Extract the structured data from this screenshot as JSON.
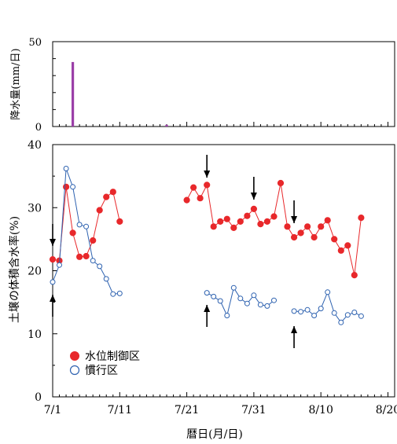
{
  "chart_data": [
    {
      "type": "bar",
      "ylabel": "降水量(mm/日)",
      "ylim": [
        0,
        50
      ],
      "yticks": [
        "0",
        "50"
      ],
      "x_range": [
        "7/1",
        "8/21"
      ],
      "color": "#9b3fa8",
      "points": [
        {
          "x": "7/4",
          "y": 38
        },
        {
          "x": "7/18",
          "y": 1
        }
      ]
    },
    {
      "type": "line",
      "xlabel": "暦日(月/日)",
      "ylabel": "土壌の体積含水率(%)",
      "ylim": [
        0,
        40
      ],
      "yticks": [
        "0",
        "10",
        "20",
        "30",
        "40"
      ],
      "xticks": [
        "7/1",
        "7/11",
        "7/21",
        "7/31",
        "8/10",
        "8/20"
      ],
      "x_range": [
        "7/1",
        "8/21"
      ],
      "legend_position": "bottom-left",
      "series": [
        {
          "name": "水位制御区",
          "marker": "filled-circle",
          "color": "#e8282b",
          "segments": [
            [
              [
                "7/1",
                21.8
              ],
              [
                "7/2",
                21.6
              ],
              [
                "7/3",
                33.3
              ],
              [
                "7/4",
                26.0
              ],
              [
                "7/5",
                22.2
              ],
              [
                "7/6",
                22.3
              ],
              [
                "7/7",
                24.8
              ],
              [
                "7/8",
                29.6
              ],
              [
                "7/9",
                31.7
              ],
              [
                "7/10",
                32.5
              ],
              [
                "7/11",
                27.8
              ]
            ],
            [
              [
                "7/21",
                31.2
              ],
              [
                "7/22",
                33.2
              ],
              [
                "7/23",
                31.5
              ],
              [
                "7/24",
                33.6
              ],
              [
                "7/25",
                27.0
              ],
              [
                "7/26",
                27.8
              ],
              [
                "7/27",
                28.2
              ],
              [
                "7/28",
                26.8
              ],
              [
                "7/29",
                27.8
              ],
              [
                "7/30",
                28.7
              ],
              [
                "7/31",
                29.8
              ],
              [
                "8/1",
                27.4
              ],
              [
                "8/2",
                27.8
              ],
              [
                "8/3",
                28.6
              ],
              [
                "8/4",
                33.9
              ],
              [
                "8/5",
                27.0
              ],
              [
                "8/6",
                25.3
              ],
              [
                "8/7",
                26.0
              ],
              [
                "8/8",
                27.0
              ],
              [
                "8/9",
                25.3
              ],
              [
                "8/10",
                27.0
              ],
              [
                "8/11",
                28.0
              ],
              [
                "8/12",
                25.0
              ],
              [
                "8/13",
                23.2
              ],
              [
                "8/14",
                24.0
              ],
              [
                "8/15",
                19.3
              ],
              [
                "8/16",
                28.4
              ]
            ]
          ]
        },
        {
          "name": "慣行区",
          "marker": "open-circle",
          "color": "#2e62b0",
          "segments": [
            [
              [
                "7/1",
                18.2
              ],
              [
                "7/2",
                20.9
              ],
              [
                "7/3",
                36.2
              ],
              [
                "7/4",
                33.3
              ],
              [
                "7/5",
                27.3
              ],
              [
                "7/6",
                27.0
              ],
              [
                "7/7",
                21.6
              ],
              [
                "7/8",
                20.7
              ],
              [
                "7/9",
                18.7
              ],
              [
                "7/10",
                16.3
              ],
              [
                "7/11",
                16.4
              ]
            ],
            [
              [
                "7/24",
                16.5
              ],
              [
                "7/25",
                15.9
              ],
              [
                "7/26",
                15.2
              ],
              [
                "7/27",
                12.9
              ],
              [
                "7/28",
                17.3
              ],
              [
                "7/29",
                15.6
              ],
              [
                "7/30",
                14.8
              ],
              [
                "7/31",
                16.1
              ],
              [
                "8/1",
                14.6
              ],
              [
                "8/2",
                14.4
              ],
              [
                "8/3",
                15.3
              ]
            ],
            [
              [
                "8/6",
                13.6
              ],
              [
                "8/7",
                13.5
              ],
              [
                "8/8",
                13.8
              ],
              [
                "8/9",
                12.9
              ],
              [
                "8/10",
                14.0
              ],
              [
                "8/11",
                16.6
              ],
              [
                "8/12",
                13.3
              ],
              [
                "8/13",
                11.8
              ],
              [
                "8/14",
                13.0
              ],
              [
                "8/15",
                13.4
              ],
              [
                "8/16",
                12.8
              ]
            ]
          ]
        }
      ],
      "annotations": {
        "down_arrows_at": [
          "7/1",
          "7/24",
          "7/31",
          "8/6"
        ],
        "up_arrows_at": [
          "7/1",
          "7/24",
          "8/6"
        ]
      }
    }
  ]
}
